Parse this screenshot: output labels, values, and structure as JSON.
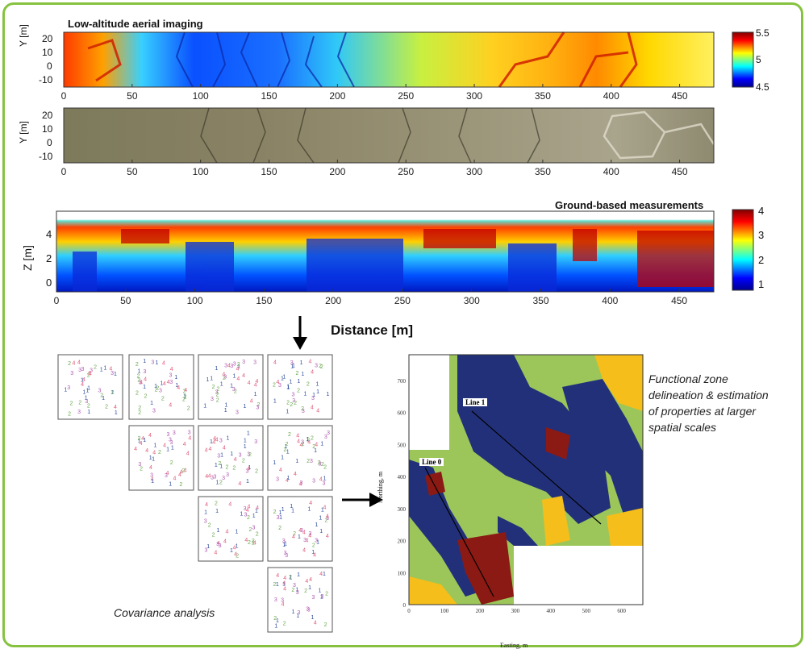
{
  "colors": {
    "frame": "#86c23f",
    "jet": [
      "#00008f",
      "#0000ff",
      "#00ffff",
      "#ffff00",
      "#ff0000",
      "#800000"
    ],
    "zone1": "#22307a",
    "zone2": "#9cc65a",
    "zone3": "#8b1a14",
    "zone4": "#f5be1a",
    "scatter": [
      "#2b4a9c",
      "#6aa84f",
      "#b05ab0",
      "#e05a7a"
    ]
  },
  "panel_aerial": {
    "title": "Low-altitude aerial imaging",
    "ylabel": "Y [m]",
    "yticks": [
      "20",
      "10",
      "0",
      "-10"
    ],
    "xticks": [
      "0",
      "50",
      "100",
      "150",
      "200",
      "250",
      "300",
      "350",
      "400",
      "450"
    ],
    "colorbar_ticks": [
      "5.5",
      "5",
      "4.5"
    ]
  },
  "panel_photo": {
    "ylabel": "Y [m]",
    "yticks": [
      "20",
      "10",
      "0",
      "-10"
    ],
    "xticks": [
      "0",
      "50",
      "100",
      "150",
      "200",
      "250",
      "300",
      "350",
      "400",
      "450"
    ]
  },
  "panel_ground": {
    "title": "Ground-based measurements",
    "ylabel": "Z [m]",
    "yticks": [
      "4",
      "2",
      "0"
    ],
    "xticks": [
      "0",
      "50",
      "100",
      "150",
      "200",
      "250",
      "300",
      "350",
      "400",
      "450"
    ],
    "xlabel": "Distance [m]",
    "colorbar_ticks": [
      "4",
      "3",
      "2",
      "1"
    ]
  },
  "covariance": {
    "caption": "Covariance analysis",
    "labels": [
      "1",
      "2",
      "3",
      "4"
    ]
  },
  "map": {
    "caption_lines": [
      "Functional zone",
      "delineation & estimation",
      "of properties at larger",
      "spatial scales"
    ],
    "line0": "Line 0",
    "line1": "Line 1",
    "ylabel": "Northing, m",
    "xlabel": "Easting, m",
    "yticks": [
      "700",
      "600",
      "500",
      "400",
      "300",
      "200",
      "100",
      "0"
    ],
    "xticks": [
      "0",
      "100",
      "200",
      "300",
      "400",
      "500",
      "600"
    ]
  }
}
